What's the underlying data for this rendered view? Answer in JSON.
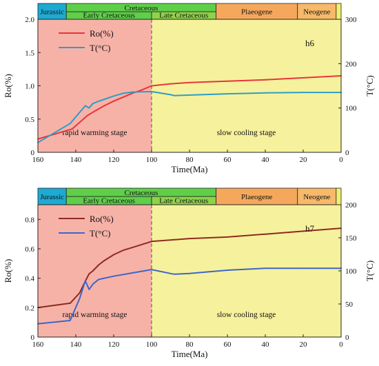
{
  "chart_data": [
    {
      "type": "line",
      "panel_label": "h6",
      "xlabel": "Time(Ma)",
      "ylabel_left": "Ro(%)",
      "ylabel_right": "T(°C)",
      "xlim": [
        160,
        0
      ],
      "ylim_left": [
        0,
        2.0
      ],
      "ylim_right": [
        0,
        300
      ],
      "x_ticks": [
        "160",
        "140",
        "120",
        "100",
        "80",
        "60",
        "40",
        "20",
        "0"
      ],
      "y_left_ticks": [
        "0",
        "0.5",
        "1.0",
        "1.5",
        "2.0"
      ],
      "y_right_ticks": [
        "0",
        "100",
        "200",
        "300"
      ],
      "periods": [
        {
          "name": "Jurassic",
          "start": 160,
          "end": 145,
          "color": "#1eaad2"
        },
        {
          "name": "Early Cretaceous",
          "start": 145,
          "end": 100,
          "color": "#5fcf4a"
        },
        {
          "name": "Late Cretaceous",
          "start": 100,
          "end": 66,
          "color": "#8fd24a"
        },
        {
          "name": "Plaeogene",
          "start": 66,
          "end": 23,
          "color": "#f5a85c"
        },
        {
          "name": "Neogene",
          "start": 23,
          "end": 2.6,
          "color": "#f7b96a"
        },
        {
          "name": "",
          "start": 2.6,
          "end": 0,
          "color": "#f2f06e"
        }
      ],
      "era_label": "Cretaceous",
      "stages": [
        {
          "label": "rapid warming stage",
          "from": 160,
          "to": 100,
          "color": "#f7b2a8"
        },
        {
          "label": "slow cooling stage",
          "from": 100,
          "to": 0,
          "color": "#f6f19c"
        }
      ],
      "boundary_x": 100,
      "series": [
        {
          "name": "Ro(%)",
          "axis": "left",
          "color": "#e8343a",
          "x": [
            160,
            142,
            138,
            134,
            130,
            125,
            120,
            115,
            110,
            105,
            100,
            90,
            80,
            60,
            40,
            20,
            0
          ],
          "y": [
            0.2,
            0.35,
            0.45,
            0.55,
            0.62,
            0.7,
            0.77,
            0.83,
            0.89,
            0.94,
            1.0,
            1.03,
            1.05,
            1.07,
            1.09,
            1.12,
            1.15
          ]
        },
        {
          "name": "T(°C)",
          "axis": "right",
          "color": "#2a9ec4",
          "x": [
            160,
            143,
            135,
            133,
            131,
            128,
            120,
            115,
            110,
            100,
            90,
            88,
            60,
            40,
            20,
            0
          ],
          "y": [
            22,
            65,
            105,
            100,
            110,
            115,
            127,
            133,
            136,
            137,
            130,
            128,
            132,
            134,
            135,
            135
          ]
        }
      ]
    },
    {
      "type": "line",
      "panel_label": "h7",
      "xlabel": "Time(Ma)",
      "ylabel_left": "Ro(%)",
      "ylabel_right": "T(°C)",
      "xlim": [
        160,
        0
      ],
      "ylim_left": [
        0,
        0.9
      ],
      "ylim_right": [
        0,
        200
      ],
      "x_ticks": [
        "160",
        "140",
        "120",
        "100",
        "80",
        "60",
        "40",
        "20",
        "0"
      ],
      "y_left_ticks": [
        "0",
        "0.2",
        "0.4",
        "0.6",
        "0.8"
      ],
      "y_right_ticks": [
        "0",
        "50",
        "100",
        "150",
        "200"
      ],
      "periods": [
        {
          "name": "Jurassic",
          "start": 160,
          "end": 145,
          "color": "#1eaad2"
        },
        {
          "name": "Early Cretaceous",
          "start": 145,
          "end": 100,
          "color": "#5fcf4a"
        },
        {
          "name": "Late Cretaceous",
          "start": 100,
          "end": 66,
          "color": "#8fd24a"
        },
        {
          "name": "Plaeogene",
          "start": 66,
          "end": 23,
          "color": "#f5a85c"
        },
        {
          "name": "Neogene",
          "start": 23,
          "end": 2.6,
          "color": "#f7b96a"
        },
        {
          "name": "",
          "start": 2.6,
          "end": 0,
          "color": "#f2f06e"
        }
      ],
      "era_label": "Cretaceous",
      "stages": [
        {
          "label": "rapid warming stage",
          "from": 160,
          "to": 100,
          "color": "#f7b2a8"
        },
        {
          "label": "slow cooling stage",
          "from": 100,
          "to": 0,
          "color": "#f6f19c"
        }
      ],
      "boundary_x": 100,
      "series": [
        {
          "name": "Ro(%)",
          "axis": "left",
          "color": "#8e2a1e",
          "x": [
            160,
            143,
            138,
            135,
            133,
            131,
            128,
            125,
            120,
            115,
            110,
            100,
            80,
            60,
            40,
            20,
            0
          ],
          "y": [
            0.2,
            0.23,
            0.3,
            0.38,
            0.43,
            0.45,
            0.49,
            0.52,
            0.56,
            0.59,
            0.61,
            0.65,
            0.67,
            0.68,
            0.7,
            0.72,
            0.74
          ]
        },
        {
          "name": "T(°C)",
          "axis": "right",
          "color": "#3b66c8",
          "x": [
            160,
            143,
            138,
            135,
            133,
            131,
            128,
            120,
            110,
            100,
            90,
            88,
            80,
            60,
            40,
            20,
            0
          ],
          "y": [
            20,
            25,
            58,
            85,
            72,
            80,
            87,
            92,
            97,
            102,
            96,
            95,
            96,
            101,
            104,
            104,
            104
          ]
        }
      ]
    }
  ]
}
